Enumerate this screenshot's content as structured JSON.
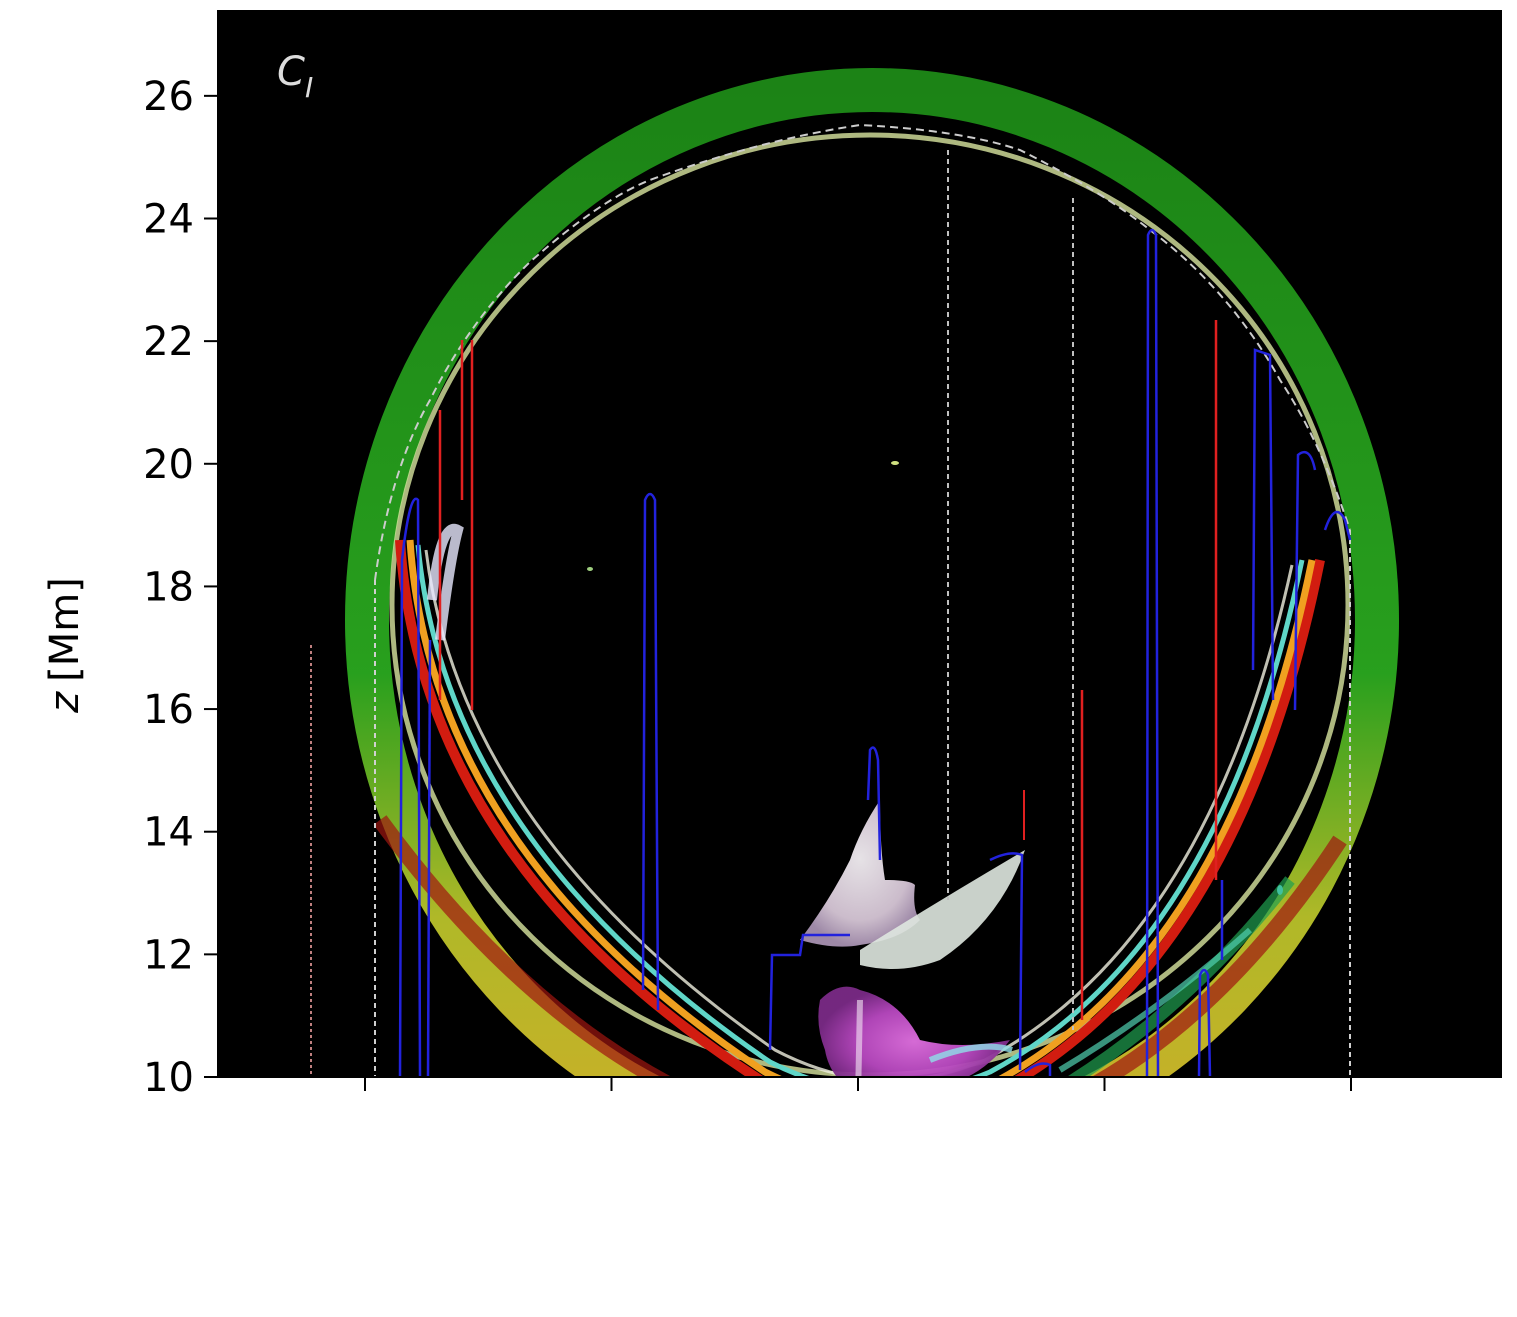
{
  "chart_data": {
    "type": "image",
    "panel_label": "C_I",
    "panel_label_main": "C",
    "panel_label_sub": "I",
    "ylabel_var": "z",
    "ylabel_unit": "[Mm]",
    "ylim": [
      10,
      27.4
    ],
    "yticks": [
      {
        "value": 10,
        "label": "10"
      },
      {
        "value": 12,
        "label": "12"
      },
      {
        "value": 14,
        "label": "14"
      },
      {
        "value": 16,
        "label": "16"
      },
      {
        "value": 18,
        "label": "18"
      },
      {
        "value": 20,
        "label": "20"
      },
      {
        "value": 22,
        "label": "22"
      },
      {
        "value": 24,
        "label": "24"
      },
      {
        "value": 26,
        "label": "26"
      }
    ],
    "xtick_count": 5,
    "background": "#000000",
    "colors": {
      "outer_shell": "#1f9e1a",
      "outer_shell_low": "#c9c62a",
      "inner_band_red": "#d01c10",
      "inner_band_orange": "#f0a020",
      "inner_band_cyan": "#5fd6c8",
      "core_magenta": "#c050c8",
      "core_pale": "#e8d8e8",
      "contour_blue": "#2020e0",
      "contour_red": "#e02020",
      "contour_dashed": "#cccccc"
    }
  }
}
